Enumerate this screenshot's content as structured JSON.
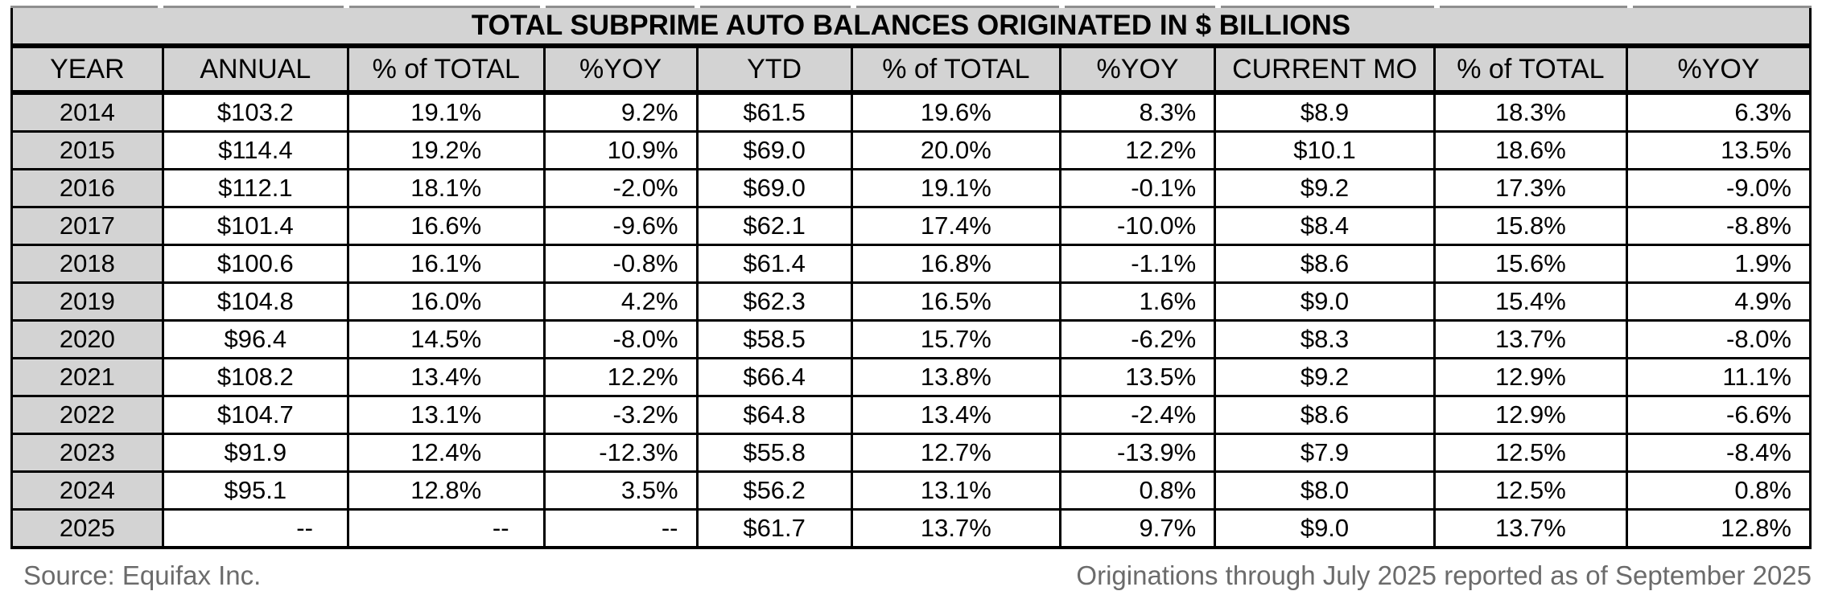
{
  "colors": {
    "grid": "#000000",
    "fill_gray": "#d3d3d3",
    "footer_text": "#6b6b6b",
    "top_edge_line": "#8f8f8f"
  },
  "chart_data": {
    "type": "table",
    "title": "TOTAL SUBPRIME AUTO BALANCES ORIGINATED IN $ BILLIONS",
    "columns": [
      "YEAR",
      "ANNUAL",
      "% of TOTAL",
      "%YOY",
      "YTD",
      "% of TOTAL",
      "%YOY",
      "CURRENT MO",
      "% of TOTAL",
      "%YOY"
    ],
    "rows": [
      [
        "2014",
        "$103.2",
        "19.1%",
        "9.2%",
        "$61.5",
        "19.6%",
        "8.3%",
        "$8.9",
        "18.3%",
        "6.3%"
      ],
      [
        "2015",
        "$114.4",
        "19.2%",
        "10.9%",
        "$69.0",
        "20.0%",
        "12.2%",
        "$10.1",
        "18.6%",
        "13.5%"
      ],
      [
        "2016",
        "$112.1",
        "18.1%",
        "-2.0%",
        "$69.0",
        "19.1%",
        "-0.1%",
        "$9.2",
        "17.3%",
        "-9.0%"
      ],
      [
        "2017",
        "$101.4",
        "16.6%",
        "-9.6%",
        "$62.1",
        "17.4%",
        "-10.0%",
        "$8.4",
        "15.8%",
        "-8.8%"
      ],
      [
        "2018",
        "$100.6",
        "16.1%",
        "-0.8%",
        "$61.4",
        "16.8%",
        "-1.1%",
        "$8.6",
        "15.6%",
        "1.9%"
      ],
      [
        "2019",
        "$104.8",
        "16.0%",
        "4.2%",
        "$62.3",
        "16.5%",
        "1.6%",
        "$9.0",
        "15.4%",
        "4.9%"
      ],
      [
        "2020",
        "$96.4",
        "14.5%",
        "-8.0%",
        "$58.5",
        "15.7%",
        "-6.2%",
        "$8.3",
        "13.7%",
        "-8.0%"
      ],
      [
        "2021",
        "$108.2",
        "13.4%",
        "12.2%",
        "$66.4",
        "13.8%",
        "13.5%",
        "$9.2",
        "12.9%",
        "11.1%"
      ],
      [
        "2022",
        "$104.7",
        "13.1%",
        "-3.2%",
        "$64.8",
        "13.4%",
        "-2.4%",
        "$8.6",
        "12.9%",
        "-6.6%"
      ],
      [
        "2023",
        "$91.9",
        "12.4%",
        "-12.3%",
        "$55.8",
        "12.7%",
        "-13.9%",
        "$7.9",
        "12.5%",
        "-8.4%"
      ],
      [
        "2024",
        "$95.1",
        "12.8%",
        "3.5%",
        "$56.2",
        "13.1%",
        "0.8%",
        "$8.0",
        "12.5%",
        "0.8%"
      ],
      [
        "2025",
        "--",
        "--",
        "--",
        "$61.7",
        "13.7%",
        "9.7%",
        "$9.0",
        "13.7%",
        "12.8%"
      ]
    ]
  },
  "footer": {
    "source": "Source: Equifax Inc.",
    "note": "Originations through July 2025 reported as of September 2025"
  }
}
